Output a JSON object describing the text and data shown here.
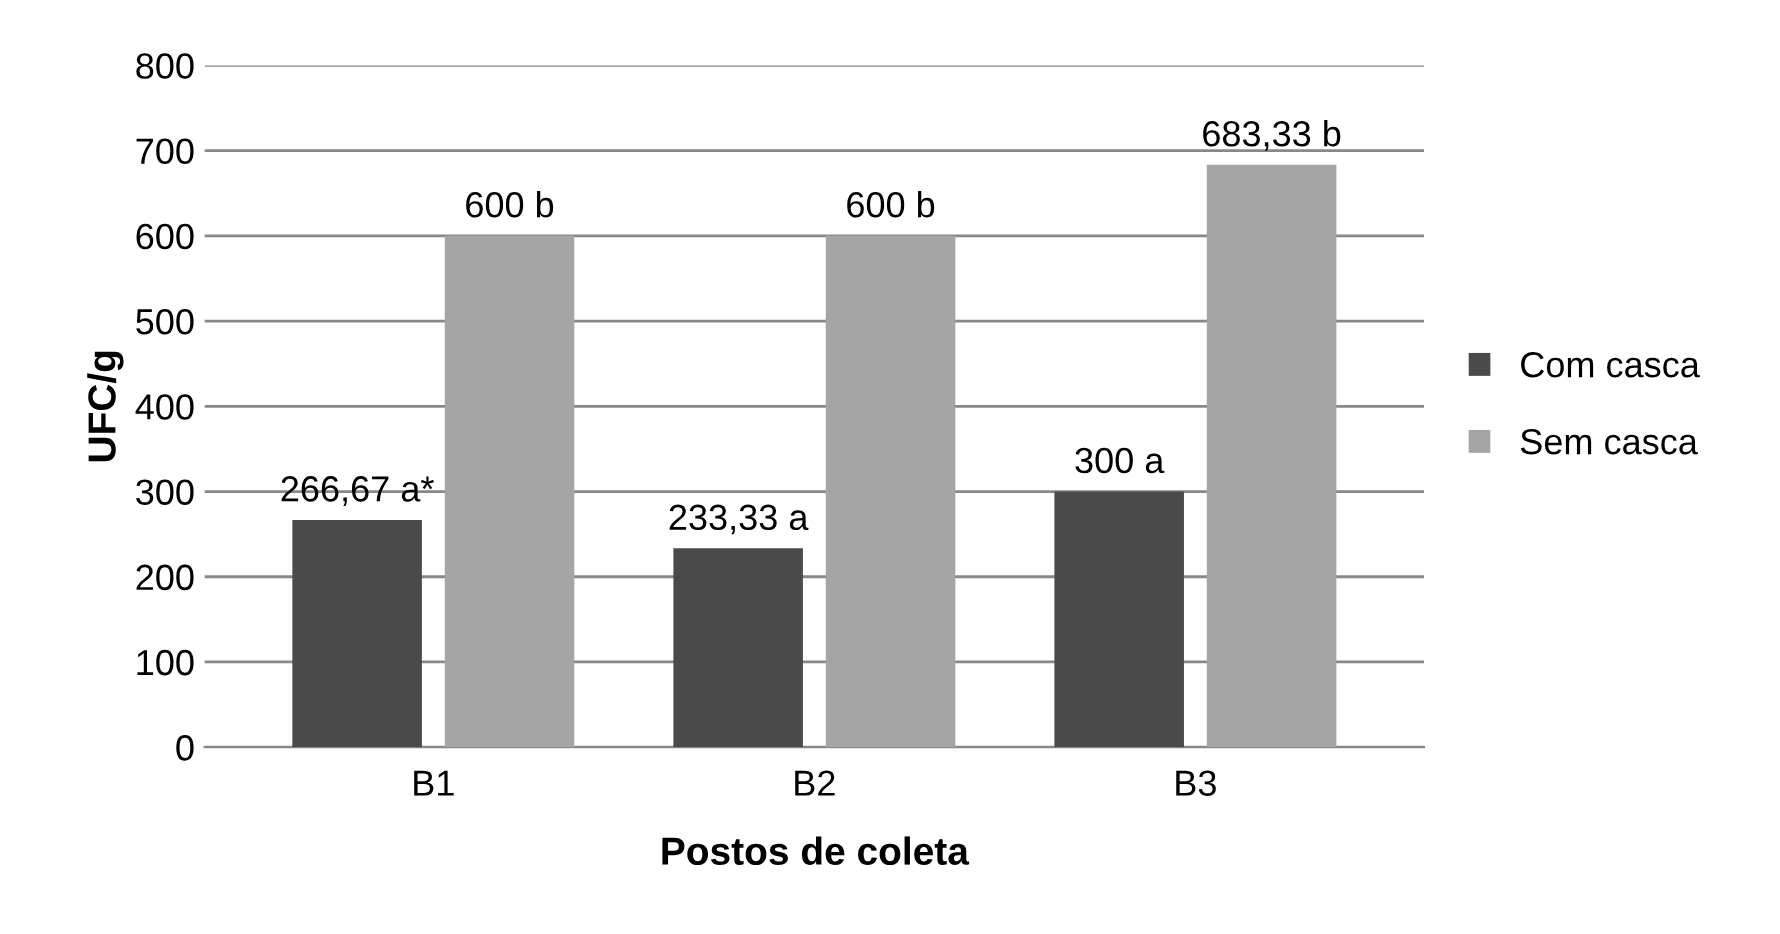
{
  "chart_data": {
    "type": "bar",
    "xlabel": "Postos de coleta",
    "ylabel": "UFC/g",
    "categories": [
      "B1",
      "B2",
      "B3"
    ],
    "series": [
      {
        "name": "Com casca",
        "color": "#4a4a4a",
        "values": [
          266.67,
          233.33,
          300
        ],
        "value_labels": [
          "266,67 a*",
          "233,33 a",
          "300 a"
        ]
      },
      {
        "name": "Sem casca",
        "color": "#a5a5a5",
        "values": [
          600,
          600,
          683.33
        ],
        "value_labels": [
          "600 b",
          "600 b",
          "683,33 b"
        ]
      }
    ],
    "ylim": [
      0,
      800
    ],
    "yticks": [
      0,
      100,
      200,
      300,
      400,
      500,
      600,
      700,
      800
    ],
    "grid": "y",
    "legend": "right"
  }
}
